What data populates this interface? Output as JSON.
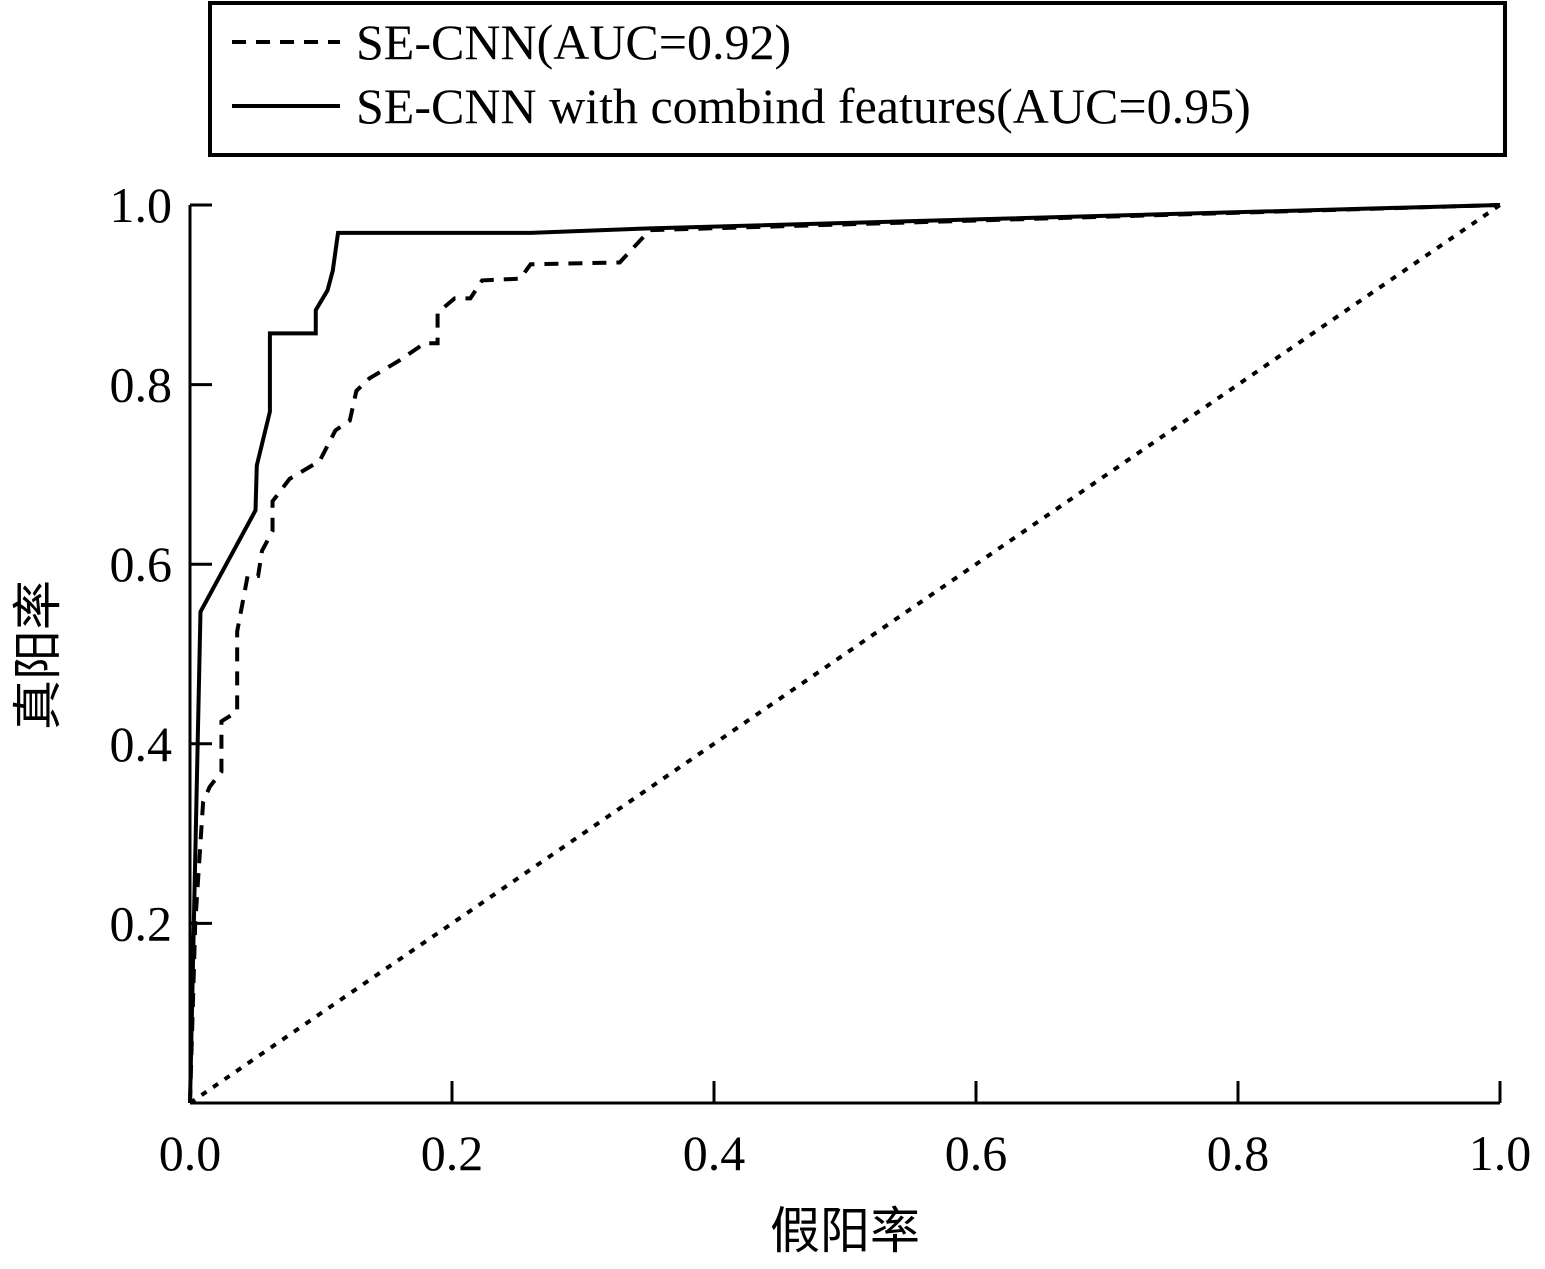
{
  "chart_data": {
    "type": "line",
    "x_label": "假阳率",
    "y_label": "真阳率",
    "xlim": [
      0,
      1
    ],
    "ylim": [
      0,
      1
    ],
    "xticks": [
      {
        "value": 0,
        "label": "0.0"
      },
      0.2,
      0.4,
      0.6,
      0.8,
      {
        "value": 1,
        "label": "1.0"
      }
    ],
    "yticks": [
      0.2,
      0.4,
      0.6,
      0.8,
      {
        "value": 1,
        "label": "1.0"
      }
    ],
    "legend": "top",
    "series": [
      {
        "name": "SE-CNN(AUC=0.92)",
        "color": "#000000",
        "dash": "dashed",
        "x": [
          0,
          0.004,
          0.01,
          0.015,
          0.024,
          0.024,
          0.036,
          0.036,
          0.044,
          0.052,
          0.055,
          0.063,
          0.063,
          0.076,
          0.099,
          0.111,
          0.122,
          0.127,
          0.137,
          0.16,
          0.179,
          0.189,
          0.189,
          0.202,
          0.214,
          0.223,
          0.252,
          0.26,
          0.328,
          0.351,
          1
        ],
        "values": [
          0,
          0.2,
          0.335,
          0.352,
          0.369,
          0.425,
          0.436,
          0.525,
          0.587,
          0.587,
          0.615,
          0.637,
          0.67,
          0.695,
          0.715,
          0.749,
          0.76,
          0.793,
          0.807,
          0.827,
          0.846,
          0.846,
          0.88,
          0.896,
          0.896,
          0.916,
          0.918,
          0.934,
          0.936,
          0.972,
          1
        ]
      },
      {
        "name": "SE-CNN with combind features(AUC=0.95)",
        "color": "#000000",
        "dash": "solid",
        "x": [
          0,
          0.008,
          0.05,
          0.051,
          0.061,
          0.061,
          0.096,
          0.096,
          0.105,
          0.109,
          0.113,
          0.26,
          0.351,
          1
        ],
        "values": [
          0,
          0.547,
          0.66,
          0.71,
          0.77,
          0.857,
          0.857,
          0.883,
          0.905,
          0.927,
          0.969,
          0.969,
          0.974,
          1
        ]
      },
      {
        "color": "#000000",
        "dash": "dotted",
        "x": [
          0,
          1
        ],
        "values": [
          0,
          1
        ]
      }
    ]
  }
}
